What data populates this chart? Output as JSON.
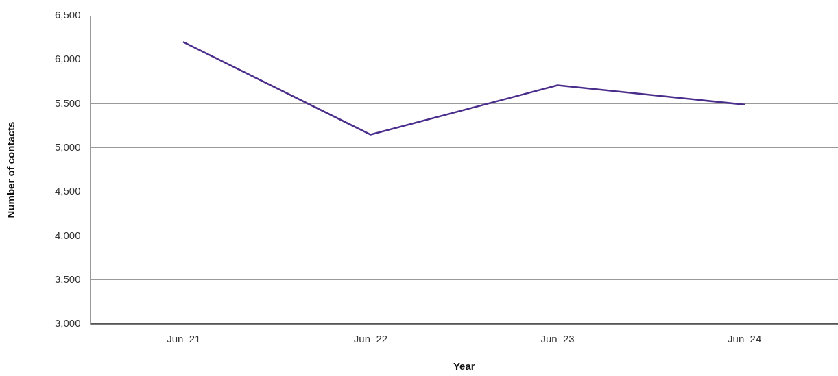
{
  "chart_data": {
    "type": "line",
    "xlabel": "Year",
    "ylabel": "Number of contacts",
    "categories": [
      "Jun–21",
      "Jun–22",
      "Jun–23",
      "Jun–24"
    ],
    "series": [
      {
        "color": "#4b2e8c",
        "values": [
          6200,
          5150,
          5710,
          5490
        ]
      }
    ],
    "ylim": [
      3000,
      6500
    ],
    "yticks": [
      {
        "value": 3000,
        "label": "3,000"
      },
      {
        "value": 3500,
        "label": "3,500"
      },
      {
        "value": 4000,
        "label": "4,000"
      },
      {
        "value": 4500,
        "label": "4,500"
      },
      {
        "value": 5000,
        "label": "5,000"
      },
      {
        "value": 5500,
        "label": "5,500"
      },
      {
        "value": 6000,
        "label": "6,000"
      },
      {
        "value": 6500,
        "label": "6,500"
      }
    ],
    "grid": "y",
    "legend": false,
    "marker": "none",
    "line_style": "solid"
  }
}
